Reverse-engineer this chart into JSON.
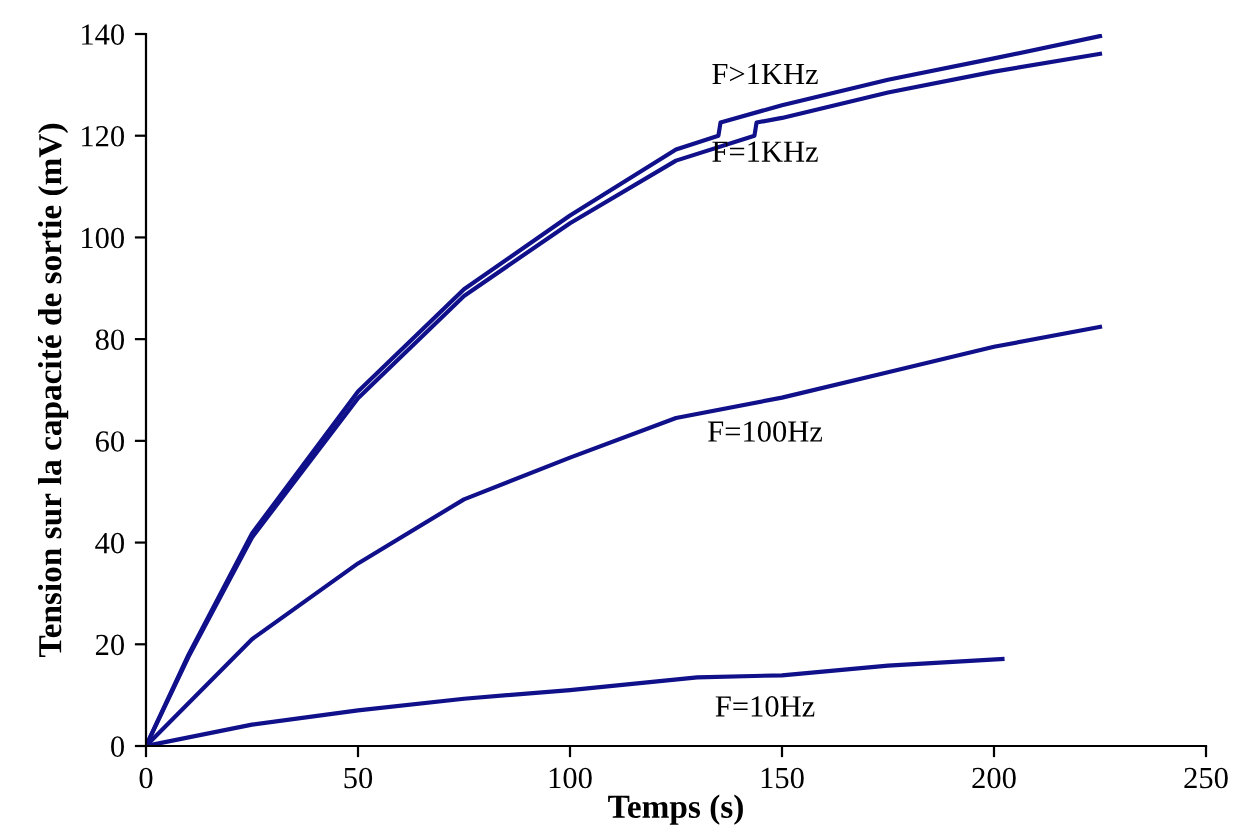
{
  "chart_data": {
    "type": "line",
    "xlabel": "Temps (s)",
    "ylabel": "Tension sur la capacité de sortie (mV)",
    "xlim": [
      0,
      250
    ],
    "ylim": [
      0,
      140
    ],
    "xticks": [
      0,
      50,
      100,
      150,
      200,
      250
    ],
    "yticks": [
      0,
      20,
      40,
      60,
      80,
      100,
      120,
      140
    ],
    "grid": false,
    "legend": false,
    "marker": "none",
    "line_style": "solid",
    "series": [
      {
        "name": "F>1KHz",
        "color": "#10108a",
        "x": [
          0,
          10,
          25,
          50,
          75,
          100,
          125,
          135,
          135.5,
          150,
          175,
          200,
          225
        ],
        "values": [
          0,
          17.9,
          41.8,
          69.7,
          89.8,
          104.3,
          117.3,
          120,
          122.6,
          126,
          131,
          135.2,
          139.6
        ]
      },
      {
        "name": "F=1KHz",
        "color": "#10108a",
        "x": [
          0,
          10,
          25,
          50,
          75,
          100,
          125,
          143.5,
          144,
          150,
          175,
          200,
          225
        ],
        "values": [
          0,
          17.5,
          41,
          68.4,
          88.5,
          102.8,
          115.1,
          120,
          122.6,
          123.5,
          128.5,
          132.6,
          136.1
        ]
      },
      {
        "name": "F=100Hz",
        "color": "#10108a",
        "x": [
          0,
          25,
          50,
          75,
          100,
          125,
          150,
          175,
          200,
          225
        ],
        "values": [
          0,
          21,
          35.9,
          48.5,
          56.7,
          64.5,
          68.5,
          73.5,
          78.5,
          82.4
        ]
      },
      {
        "name": "F=10Hz",
        "color": "#10108a",
        "x": [
          0,
          25,
          50,
          75,
          100,
          130,
          150,
          175,
          202
        ],
        "values": [
          0,
          4.2,
          7,
          9.3,
          11,
          13.5,
          13.9,
          15.8,
          17.1
        ]
      }
    ]
  }
}
